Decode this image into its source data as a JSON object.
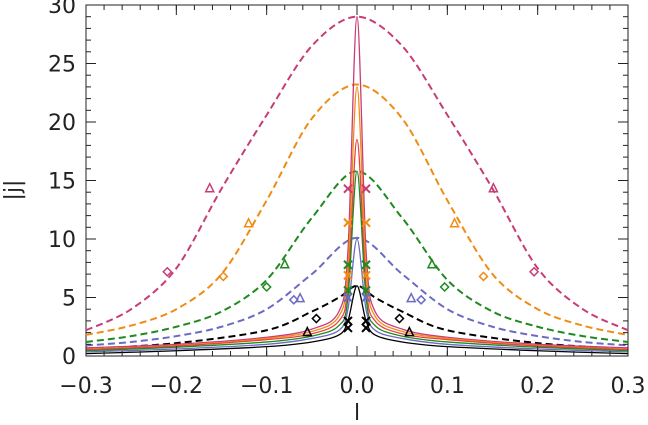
{
  "chart_data": {
    "type": "line",
    "title": "",
    "xlabel": "l",
    "ylabel": "|j|",
    "xlim": [
      -0.3,
      0.3
    ],
    "ylim": [
      0,
      30
    ],
    "xticks": [
      -0.3,
      -0.2,
      -0.1,
      0.0,
      0.1,
      0.2,
      0.3
    ],
    "xtick_labels": [
      "−0.3",
      "−0.2",
      "−0.1",
      "0.0",
      "0.1",
      "0.2",
      "0.3"
    ],
    "yticks": [
      0,
      5,
      10,
      15,
      20,
      25,
      30
    ],
    "ytick_labels": [
      "0",
      "5",
      "10",
      "15",
      "20",
      "25",
      "30"
    ],
    "grid": false,
    "legend": "none",
    "colors": {
      "black": "#000000",
      "blue": "#6b6bc4",
      "green": "#1f8a1f",
      "orange": "#f08c14",
      "magenta": "#c83c78",
      "red": "#e84040"
    },
    "series": [
      {
        "color": "magenta",
        "dash": "dashed",
        "marker": "",
        "x": [
          -0.3,
          -0.25,
          -0.2,
          -0.15,
          -0.1,
          -0.05,
          0.0,
          0.05,
          0.1,
          0.15,
          0.2,
          0.25,
          0.3
        ],
        "y": [
          2.2,
          4.0,
          7.5,
          14.3,
          20.6,
          26.5,
          29.0,
          26.5,
          20.6,
          14.3,
          7.5,
          4.0,
          2.2
        ]
      },
      {
        "color": "orange",
        "dash": "dashed",
        "marker": "",
        "x": [
          -0.3,
          -0.25,
          -0.2,
          -0.15,
          -0.1,
          -0.05,
          0.0,
          0.05,
          0.1,
          0.15,
          0.2,
          0.25,
          0.3
        ],
        "y": [
          1.8,
          2.6,
          4.0,
          7.0,
          13.3,
          20.3,
          23.2,
          20.3,
          13.3,
          7.0,
          4.0,
          2.6,
          1.8
        ]
      },
      {
        "color": "green",
        "dash": "dashed",
        "marker": "",
        "x": [
          -0.3,
          -0.25,
          -0.2,
          -0.15,
          -0.1,
          -0.05,
          0.0,
          0.05,
          0.1,
          0.15,
          0.2,
          0.25,
          0.3
        ],
        "y": [
          1.2,
          1.7,
          2.5,
          3.8,
          6.5,
          11.8,
          15.8,
          11.8,
          6.5,
          3.8,
          2.5,
          1.7,
          1.2
        ]
      },
      {
        "color": "blue",
        "dash": "dashed",
        "marker": "",
        "x": [
          -0.3,
          -0.25,
          -0.2,
          -0.15,
          -0.1,
          -0.05,
          0.0,
          0.05,
          0.1,
          0.15,
          0.2,
          0.25,
          0.3
        ],
        "y": [
          0.9,
          1.2,
          1.7,
          2.5,
          4.0,
          7.0,
          10.1,
          7.0,
          4.0,
          2.5,
          1.7,
          1.2,
          0.9
        ]
      },
      {
        "color": "black",
        "dash": "dashed",
        "marker": "",
        "x": [
          -0.3,
          -0.2,
          -0.1,
          -0.05,
          -0.02,
          0.0,
          0.02,
          0.05,
          0.1,
          0.2,
          0.3
        ],
        "y": [
          0.6,
          1.1,
          2.2,
          3.8,
          5.0,
          6.0,
          5.0,
          3.8,
          2.2,
          1.1,
          0.6
        ]
      },
      {
        "color": "magenta",
        "dash": "solid",
        "marker": "",
        "x": [
          -0.3,
          -0.2,
          -0.1,
          -0.05,
          -0.02,
          -0.01,
          0.0,
          0.01,
          0.02,
          0.05,
          0.1,
          0.2,
          0.3
        ],
        "y": [
          0.7,
          1.0,
          1.6,
          2.3,
          3.8,
          9.0,
          29.0,
          9.0,
          3.8,
          2.3,
          1.6,
          1.0,
          0.7
        ]
      },
      {
        "color": "orange",
        "dash": "solid",
        "marker": "",
        "x": [
          -0.3,
          -0.2,
          -0.1,
          -0.05,
          -0.02,
          -0.01,
          0.0,
          0.01,
          0.02,
          0.05,
          0.1,
          0.2,
          0.3
        ],
        "y": [
          0.6,
          0.9,
          1.5,
          2.1,
          3.4,
          7.5,
          23.0,
          7.5,
          3.4,
          2.1,
          1.5,
          0.9,
          0.6
        ]
      },
      {
        "color": "red",
        "dash": "solid",
        "marker": "",
        "x": [
          -0.3,
          -0.2,
          -0.1,
          -0.05,
          -0.02,
          -0.01,
          0.0,
          0.01,
          0.02,
          0.05,
          0.1,
          0.2,
          0.3
        ],
        "y": [
          0.55,
          0.85,
          1.4,
          1.9,
          3.0,
          6.0,
          18.5,
          6.0,
          3.0,
          1.9,
          1.4,
          0.85,
          0.55
        ]
      },
      {
        "color": "green",
        "dash": "solid",
        "marker": "",
        "x": [
          -0.3,
          -0.2,
          -0.1,
          -0.05,
          -0.02,
          -0.01,
          0.0,
          0.01,
          0.02,
          0.05,
          0.1,
          0.2,
          0.3
        ],
        "y": [
          0.45,
          0.75,
          1.2,
          1.7,
          2.6,
          5.0,
          15.8,
          5.0,
          2.6,
          1.7,
          1.2,
          0.75,
          0.45
        ]
      },
      {
        "color": "blue",
        "dash": "solid",
        "marker": "",
        "x": [
          -0.3,
          -0.2,
          -0.1,
          -0.05,
          -0.02,
          -0.01,
          0.0,
          0.01,
          0.02,
          0.05,
          0.1,
          0.2,
          0.3
        ],
        "y": [
          0.35,
          0.6,
          1.0,
          1.5,
          2.2,
          4.0,
          10.0,
          4.0,
          2.2,
          1.5,
          1.0,
          0.6,
          0.35
        ]
      },
      {
        "color": "black",
        "dash": "solid",
        "marker": "",
        "x": [
          -0.3,
          -0.2,
          -0.1,
          -0.05,
          -0.02,
          -0.01,
          0.0,
          0.01,
          0.02,
          0.05,
          0.1,
          0.2,
          0.3
        ],
        "y": [
          0.2,
          0.45,
          0.8,
          1.2,
          1.8,
          3.0,
          6.0,
          3.0,
          1.8,
          1.2,
          0.8,
          0.45,
          0.2
        ]
      },
      {
        "color": "magenta",
        "dash": "none",
        "marker": "diamond",
        "x": [
          -0.21,
          0.196
        ],
        "y": [
          7.2,
          7.2
        ]
      },
      {
        "color": "magenta",
        "dash": "none",
        "marker": "triangle",
        "x": [
          -0.163,
          0.151
        ],
        "y": [
          14.3,
          14.3
        ]
      },
      {
        "color": "orange",
        "dash": "none",
        "marker": "diamond",
        "x": [
          -0.148,
          0.14
        ],
        "y": [
          6.8,
          6.8
        ]
      },
      {
        "color": "orange",
        "dash": "none",
        "marker": "triangle",
        "x": [
          -0.12,
          0.108
        ],
        "y": [
          11.3,
          11.3
        ]
      },
      {
        "color": "green",
        "dash": "none",
        "marker": "diamond",
        "x": [
          -0.1,
          0.097
        ],
        "y": [
          5.9,
          5.9
        ]
      },
      {
        "color": "green",
        "dash": "none",
        "marker": "triangle",
        "x": [
          -0.08,
          0.083
        ],
        "y": [
          7.8,
          7.8
        ]
      },
      {
        "color": "blue",
        "dash": "none",
        "marker": "diamond",
        "x": [
          -0.07,
          0.071
        ],
        "y": [
          4.8,
          4.8
        ]
      },
      {
        "color": "blue",
        "dash": "none",
        "marker": "triangle",
        "x": [
          -0.063,
          0.06
        ],
        "y": [
          4.9,
          4.9
        ]
      },
      {
        "color": "black",
        "dash": "none",
        "marker": "diamond",
        "x": [
          -0.045,
          0.047
        ],
        "y": [
          3.2,
          3.2
        ]
      },
      {
        "color": "black",
        "dash": "none",
        "marker": "triangle",
        "x": [
          -0.055,
          0.058
        ],
        "y": [
          2.0,
          2.0
        ]
      },
      {
        "color": "magenta",
        "dash": "none",
        "marker": "x",
        "x": [
          -0.01,
          0.01
        ],
        "y": [
          14.3,
          14.3
        ]
      },
      {
        "color": "orange",
        "dash": "none",
        "marker": "x",
        "x": [
          -0.01,
          0.01
        ],
        "y": [
          11.4,
          11.4
        ]
      },
      {
        "color": "orange",
        "dash": "none",
        "marker": "x",
        "x": [
          -0.01,
          0.01
        ],
        "y": [
          6.9,
          6.9
        ]
      },
      {
        "color": "green",
        "dash": "none",
        "marker": "x",
        "x": [
          -0.01,
          0.01
        ],
        "y": [
          7.8,
          7.8
        ]
      },
      {
        "color": "green",
        "dash": "none",
        "marker": "x",
        "x": [
          -0.01,
          0.01
        ],
        "y": [
          5.6,
          5.6
        ]
      },
      {
        "color": "blue",
        "dash": "none",
        "marker": "x",
        "x": [
          -0.01,
          0.01
        ],
        "y": [
          5.0,
          5.0
        ]
      },
      {
        "color": "black",
        "dash": "none",
        "marker": "x",
        "x": [
          -0.01,
          0.01
        ],
        "y": [
          3.0,
          3.0
        ]
      },
      {
        "color": "black",
        "dash": "none",
        "marker": "x",
        "x": [
          -0.01,
          0.01
        ],
        "y": [
          2.4,
          2.4
        ]
      }
    ]
  }
}
